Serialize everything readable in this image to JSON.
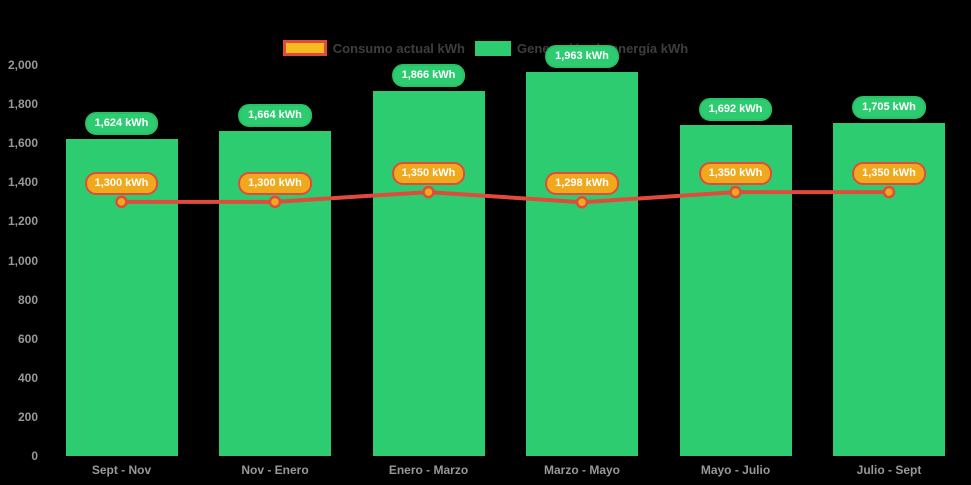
{
  "colors": {
    "background": "#000000",
    "bar_green": "#2ecc71",
    "badge_green_border": "#29c165",
    "line_red": "#e04b3c",
    "marker_yellow": "#f0a81c",
    "swatch_yellow": "#f5bc20",
    "axis_text": "#989898",
    "legend_text": "#3e3e3e",
    "label_text": "#ffffff"
  },
  "legend": {
    "line_label": "Consumo actual kWh",
    "bar_label": "Generación de energía kWh"
  },
  "chart_data": {
    "type": "bar",
    "title": "",
    "xlabel": "",
    "ylabel": "",
    "categories": [
      "Sept - Nov",
      "Nov - Enero",
      "Enero - Marzo",
      "Marzo - Mayo",
      "Mayo - Julio",
      "Julio - Sept"
    ],
    "series": [
      {
        "name": "Generación de energía kWh",
        "type": "bar",
        "color": "#2ecc71",
        "values": [
          1624,
          1664,
          1866,
          1963,
          1692,
          1705
        ],
        "labels": [
          "1,624 kWh",
          "1,664 kWh",
          "1,866 kWh",
          "1,963 kWh",
          "1,692 kWh",
          "1,705 kWh"
        ]
      },
      {
        "name": "Consumo actual kWh",
        "type": "line",
        "color": "#e04b3c",
        "marker_color": "#f0a81c",
        "values": [
          1300,
          1300,
          1350,
          1298,
          1350,
          1350
        ],
        "labels": [
          "1,300 kWh",
          "1,300 kWh",
          "1,350 kWh",
          "1,298 kWh",
          "1,350 kWh",
          "1,350 kWh"
        ]
      }
    ],
    "ylim": [
      0,
      2000
    ],
    "ytick_step": 200,
    "ytick_labels": [
      "0",
      "200",
      "400",
      "600",
      "800",
      "1,000",
      "1,200",
      "1,400",
      "1,600",
      "1,800",
      "2,000"
    ],
    "grid": false,
    "legend_position": "top-center"
  }
}
